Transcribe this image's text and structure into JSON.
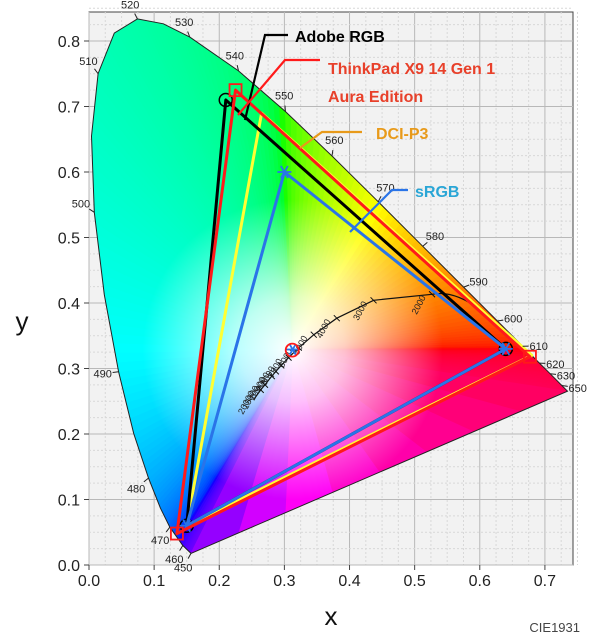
{
  "chart_data": {
    "type": "scatter",
    "title": "",
    "footnote": "CIE1931",
    "xlabel": "x",
    "ylabel": "y",
    "xlim": [
      0.0,
      0.75
    ],
    "ylim": [
      0.0,
      0.85
    ],
    "x_ticks": [
      "0.0",
      "0.1",
      "0.2",
      "0.3",
      "0.4",
      "0.5",
      "0.6",
      "0.7"
    ],
    "y_ticks": [
      "0.0",
      "0.1",
      "0.2",
      "0.3",
      "0.4",
      "0.5",
      "0.6",
      "0.7",
      "0.8"
    ],
    "grid": true,
    "spectral_locus": [
      {
        "nm": 450,
        "x": 0.1566,
        "y": 0.0177,
        "label": "450"
      },
      {
        "nm": 460,
        "x": 0.144,
        "y": 0.0297,
        "label": "460"
      },
      {
        "nm": 470,
        "x": 0.1241,
        "y": 0.0578,
        "label": "470"
      },
      {
        "nm": 475,
        "x": 0.1096,
        "y": 0.0868,
        "label": ""
      },
      {
        "nm": 480,
        "x": 0.0913,
        "y": 0.1327,
        "label": "480"
      },
      {
        "nm": 485,
        "x": 0.0687,
        "y": 0.2007,
        "label": ""
      },
      {
        "nm": 490,
        "x": 0.0454,
        "y": 0.295,
        "label": "490"
      },
      {
        "nm": 495,
        "x": 0.0235,
        "y": 0.4127,
        "label": ""
      },
      {
        "nm": 500,
        "x": 0.0082,
        "y": 0.5384,
        "label": "500"
      },
      {
        "nm": 505,
        "x": 0.0039,
        "y": 0.6548,
        "label": ""
      },
      {
        "nm": 510,
        "x": 0.0139,
        "y": 0.7502,
        "label": "510"
      },
      {
        "nm": 515,
        "x": 0.0389,
        "y": 0.812,
        "label": ""
      },
      {
        "nm": 520,
        "x": 0.0743,
        "y": 0.8338,
        "label": "520"
      },
      {
        "nm": 525,
        "x": 0.1142,
        "y": 0.8262,
        "label": ""
      },
      {
        "nm": 530,
        "x": 0.1547,
        "y": 0.8059,
        "label": "530"
      },
      {
        "nm": 540,
        "x": 0.2296,
        "y": 0.7543,
        "label": "540"
      },
      {
        "nm": 550,
        "x": 0.3016,
        "y": 0.6923,
        "label": "550"
      },
      {
        "nm": 560,
        "x": 0.3731,
        "y": 0.6245,
        "label": "560"
      },
      {
        "nm": 570,
        "x": 0.4441,
        "y": 0.5547,
        "label": "570"
      },
      {
        "nm": 580,
        "x": 0.5125,
        "y": 0.4866,
        "label": "580"
      },
      {
        "nm": 590,
        "x": 0.5752,
        "y": 0.4242,
        "label": "590"
      },
      {
        "nm": 600,
        "x": 0.627,
        "y": 0.3725,
        "label": "600"
      },
      {
        "nm": 610,
        "x": 0.6658,
        "y": 0.334,
        "label": "610"
      },
      {
        "nm": 620,
        "x": 0.6915,
        "y": 0.3083,
        "label": "620"
      },
      {
        "nm": 630,
        "x": 0.7079,
        "y": 0.292,
        "label": "630"
      },
      {
        "nm": 650,
        "x": 0.726,
        "y": 0.274,
        "label": "650"
      },
      {
        "nm": 700,
        "x": 0.7347,
        "y": 0.2653,
        "label": ""
      }
    ],
    "planckian_locus": [
      {
        "x": 0.5267,
        "y": 0.4133,
        "label": "2000"
      },
      {
        "x": 0.4369,
        "y": 0.4041,
        "label": "3000"
      },
      {
        "x": 0.3805,
        "y": 0.3768,
        "label": "4000"
      },
      {
        "x": 0.3451,
        "y": 0.3516,
        "label": "5000"
      },
      {
        "x": 0.3221,
        "y": 0.3318,
        "label": "6000"
      },
      {
        "x": 0.3064,
        "y": 0.3166,
        "label": "7000"
      },
      {
        "x": 0.2952,
        "y": 0.3048,
        "label": "8000"
      },
      {
        "x": 0.2869,
        "y": 0.2956,
        "label": "9000"
      },
      {
        "x": 0.2807,
        "y": 0.2884,
        "label": "10000"
      },
      {
        "x": 0.2702,
        "y": 0.2752,
        "label": "15000"
      },
      {
        "x": 0.2637,
        "y": 0.2674,
        "label": "20000"
      },
      {
        "x": 0.2525,
        "y": 0.252,
        "label": ""
      }
    ],
    "series": [
      {
        "name": "Adobe RGB",
        "color": "#000000",
        "marker": "circle",
        "label_color": "#000000",
        "points": [
          {
            "x": 0.64,
            "y": 0.33
          },
          {
            "x": 0.21,
            "y": 0.71
          },
          {
            "x": 0.15,
            "y": 0.06
          }
        ]
      },
      {
        "name": "ThinkPad X9 14 Gen 1 Aura Edition",
        "label_lines": [
          "ThinkPad X9 14 Gen 1",
          "Aura Edition"
        ],
        "color": "#ff1a1a",
        "marker": "square",
        "label_color": "#e8402a",
        "points": [
          {
            "x": 0.677,
            "y": 0.318
          },
          {
            "x": 0.225,
            "y": 0.725
          },
          {
            "x": 0.135,
            "y": 0.048
          }
        ],
        "white_point": {
          "x": 0.312,
          "y": 0.328
        }
      },
      {
        "name": "DCI-P3",
        "color": "#ffff33",
        "marker": "none",
        "label_color": "#e89a1a",
        "points": [
          {
            "x": 0.68,
            "y": 0.32
          },
          {
            "x": 0.265,
            "y": 0.69
          },
          {
            "x": 0.15,
            "y": 0.06
          }
        ]
      },
      {
        "name": "sRGB",
        "color": "#2a74e8",
        "marker": "asterisk",
        "label_color": "#2aa6d6",
        "points": [
          {
            "x": 0.64,
            "y": 0.33
          },
          {
            "x": 0.3,
            "y": 0.6
          },
          {
            "x": 0.15,
            "y": 0.06
          }
        ],
        "white_point": {
          "x": 0.3127,
          "y": 0.329
        }
      }
    ]
  }
}
